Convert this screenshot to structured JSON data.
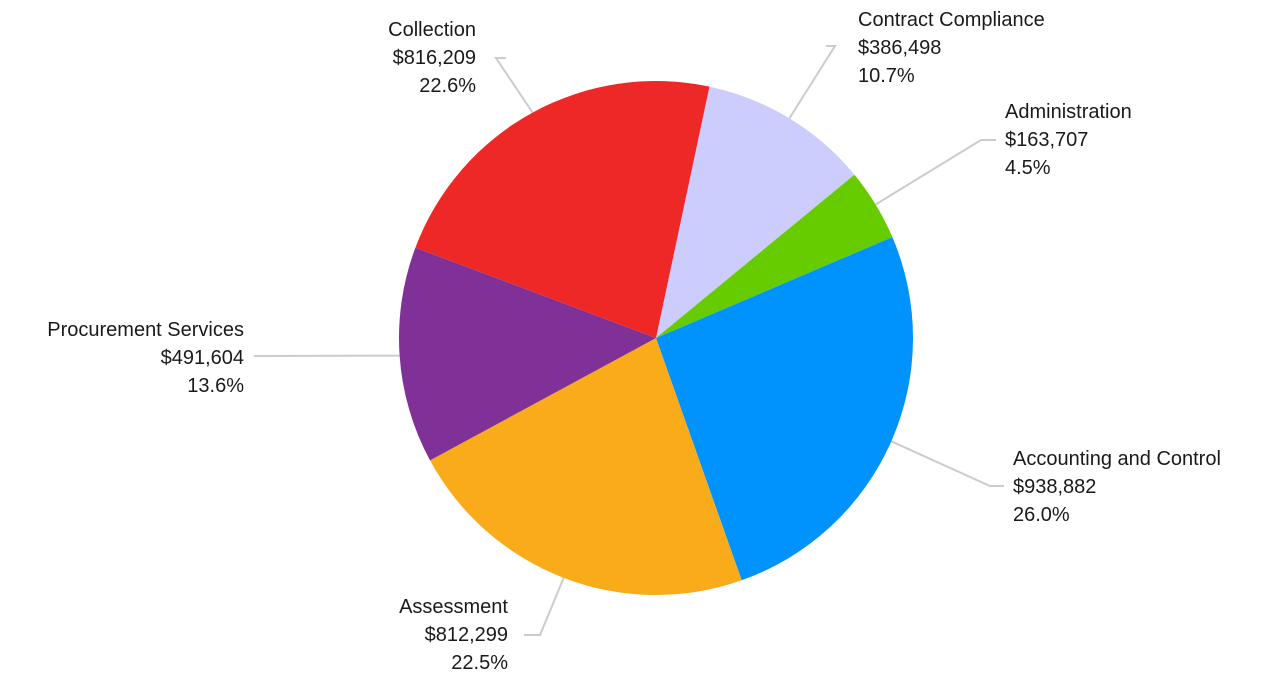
{
  "chart_data": {
    "type": "pie",
    "title": "",
    "slices": [
      {
        "label": "Contract Compliance",
        "value": 386498,
        "value_text": "$386,498",
        "percent_text": "10.7%",
        "color": "#cccdfd"
      },
      {
        "label": "Administration",
        "value": 163707,
        "value_text": "$163,707",
        "percent_text": "4.5%",
        "color": "#66cc00"
      },
      {
        "label": "Accounting and Control",
        "value": 938882,
        "value_text": "$938,882",
        "percent_text": "26.0%",
        "color": "#0093fd"
      },
      {
        "label": "Assessment",
        "value": 812299,
        "value_text": "$812,299",
        "percent_text": "22.5%",
        "color": "#f9ab1a"
      },
      {
        "label": "Procurement Services",
        "value": 491604,
        "value_text": "$491,604",
        "percent_text": "13.6%",
        "color": "#7f3197"
      },
      {
        "label": "Collection",
        "value": 816209,
        "value_text": "$816,209",
        "percent_text": "22.6%",
        "color": "#ed2826"
      }
    ],
    "legend": "none",
    "labels": "outside with leader lines"
  }
}
